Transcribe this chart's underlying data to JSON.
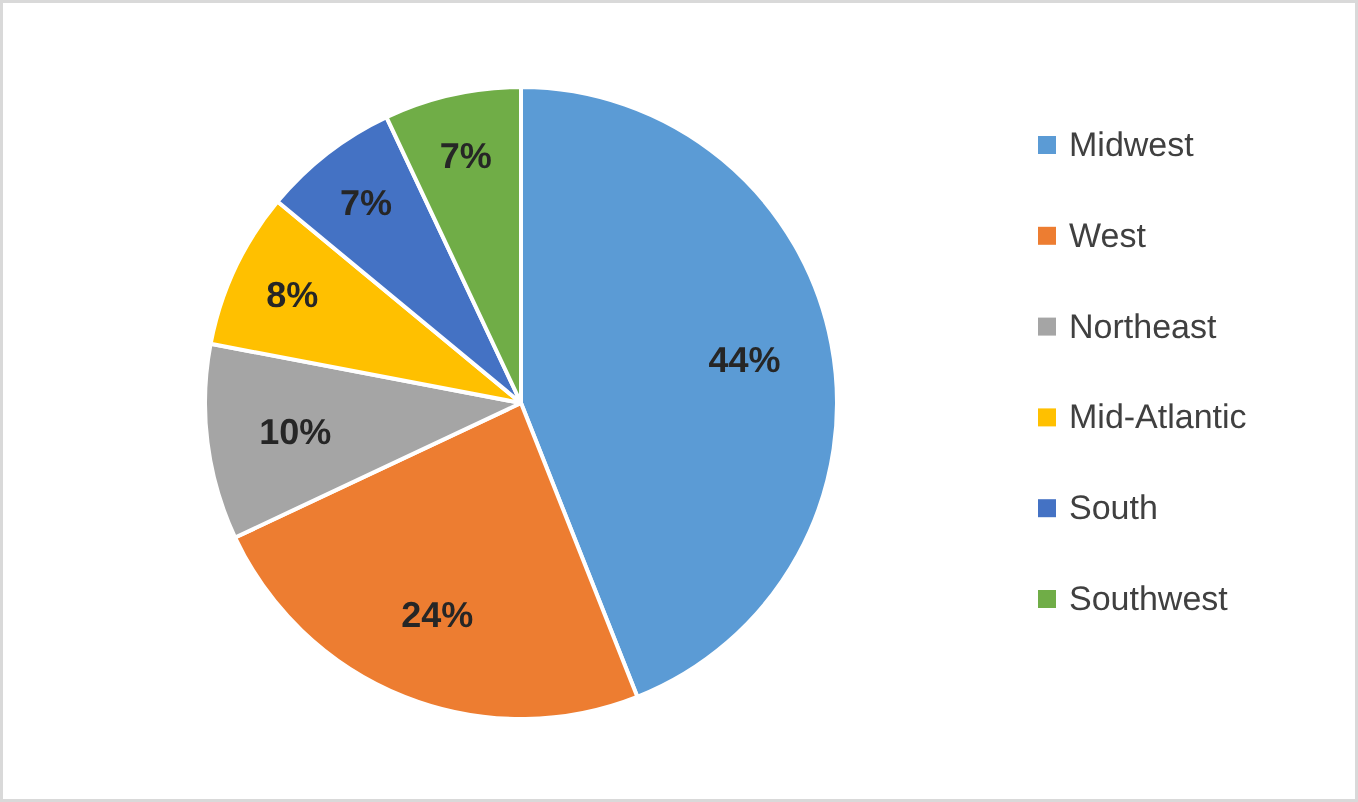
{
  "chart_data": {
    "type": "pie",
    "categories": [
      "Midwest",
      "West",
      "Northeast",
      "Mid-Atlantic",
      "South",
      "Southwest"
    ],
    "values": [
      44,
      24,
      10,
      8,
      7,
      7
    ],
    "colors": [
      "#5b9bd5",
      "#ed7d31",
      "#a5a5a5",
      "#ffc000",
      "#4472c4",
      "#70ad47"
    ],
    "value_labels": [
      "44%",
      "24%",
      "10%",
      "8%",
      "7%",
      "7%"
    ],
    "legend": "right"
  }
}
